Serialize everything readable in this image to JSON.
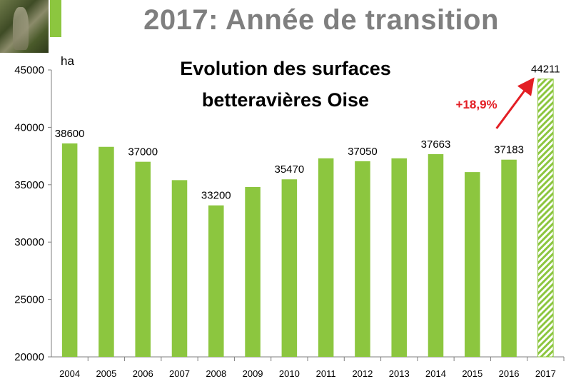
{
  "slide": {
    "title": "2017: Année de transition"
  },
  "chart_data": {
    "type": "bar",
    "title": "Evolution des surfaces betteravières Oise",
    "title_lines": [
      "Evolution des surfaces",
      "betteravières Oise"
    ],
    "ylabel": "ha",
    "xlabel": "",
    "ylim": [
      20000,
      45000
    ],
    "yticks": [
      20000,
      25000,
      30000,
      35000,
      40000,
      45000
    ],
    "grid": false,
    "categories": [
      "2004",
      "2005",
      "2006",
      "2007",
      "2008",
      "2009",
      "2010",
      "2011",
      "2012",
      "2013",
      "2014",
      "2015",
      "2016",
      "2017"
    ],
    "values": [
      38600,
      38300,
      37000,
      35400,
      33200,
      34800,
      35470,
      37300,
      37050,
      37300,
      37663,
      36100,
      37183,
      44211
    ],
    "data_labels": {
      "2004": "38600",
      "2006": "37000",
      "2008": "33200",
      "2010": "35470",
      "2012": "37050",
      "2014": "37663",
      "2016": "37183",
      "2017": "44211"
    },
    "bar_color": "#8cc63f",
    "highlight_category": "2017",
    "highlight_style": "hatched",
    "annotation": {
      "text": "+18,9%",
      "color": "#e31e24",
      "arrow": "up-right"
    }
  }
}
